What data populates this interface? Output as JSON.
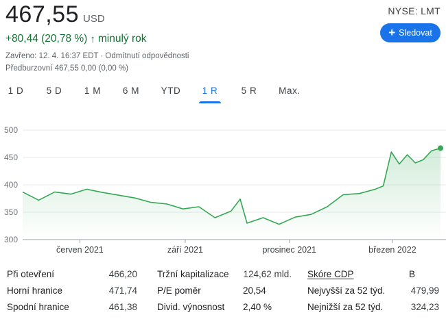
{
  "quote": {
    "price": "467,55",
    "currency": "USD",
    "change": "+80,44 (20,78 %)",
    "change_arrow": "↑",
    "change_period": "minulý rok",
    "closed": "Zavřeno: 12. 4. 16:37 EDT",
    "disclaimer": "Odmítnutí odpovědnosti",
    "premarket_label": "Předburzovní",
    "premarket_price": "467,55",
    "premarket_change": "0,00 (0,00 %)"
  },
  "header": {
    "exchange": "NYSE: LMT",
    "follow_label": "Sledovat",
    "follow_icon": "plus-icon"
  },
  "tabs": [
    "1 D",
    "5 D",
    "1 M",
    "6 M",
    "YTD",
    "1 R",
    "5 R",
    "Max."
  ],
  "active_tab": "1 R",
  "colors": {
    "accent": "#1a73e8",
    "positive": "#137333",
    "line": "#34a853"
  },
  "chart_data": {
    "type": "area",
    "ylim": [
      300,
      500
    ],
    "yticks": [
      500,
      450,
      400,
      350,
      300
    ],
    "xtick_labels": [
      "červen 2021",
      "září 2021",
      "prosinec 2021",
      "březen 2022"
    ],
    "grid": true,
    "x_start": "2021-04-12",
    "x_end": "2022-04-12",
    "x": [
      "2021-04-12",
      "2021-04-26",
      "2021-05-10",
      "2021-05-24",
      "2021-06-07",
      "2021-06-21",
      "2021-07-05",
      "2021-07-19",
      "2021-08-02",
      "2021-08-16",
      "2021-08-30",
      "2021-09-13",
      "2021-09-27",
      "2021-10-11",
      "2021-10-19",
      "2021-10-25",
      "2021-11-08",
      "2021-11-22",
      "2021-12-06",
      "2021-12-20",
      "2022-01-03",
      "2022-01-17",
      "2022-01-31",
      "2022-02-14",
      "2022-02-21",
      "2022-02-28",
      "2022-03-07",
      "2022-03-14",
      "2022-03-21",
      "2022-03-28",
      "2022-04-04",
      "2022-04-12"
    ],
    "values": [
      387,
      372,
      387,
      383,
      392,
      386,
      381,
      376,
      368,
      365,
      356,
      360,
      340,
      352,
      374,
      330,
      340,
      328,
      341,
      346,
      360,
      382,
      384,
      392,
      398,
      460,
      438,
      455,
      440,
      446,
      462,
      467
    ]
  },
  "stats": {
    "col1": [
      {
        "label": "Při otevření",
        "value": "466,20"
      },
      {
        "label": "Horní hranice",
        "value": "471,74"
      },
      {
        "label": "Spodní hranice",
        "value": "461,38"
      }
    ],
    "col2": [
      {
        "label": "Tržní kapitalizace",
        "value": "124,62 mld."
      },
      {
        "label": "P/E poměr",
        "value": "20,54"
      },
      {
        "label": "Divid. výnosnost",
        "value": "2,40 %"
      }
    ],
    "col3": [
      {
        "label": "Skóre CDP",
        "value": "B"
      },
      {
        "label": "Nejvyšší za 52 týd.",
        "value": "479,99"
      },
      {
        "label": "Nejnižší za 52 týd.",
        "value": "324,23"
      }
    ]
  }
}
